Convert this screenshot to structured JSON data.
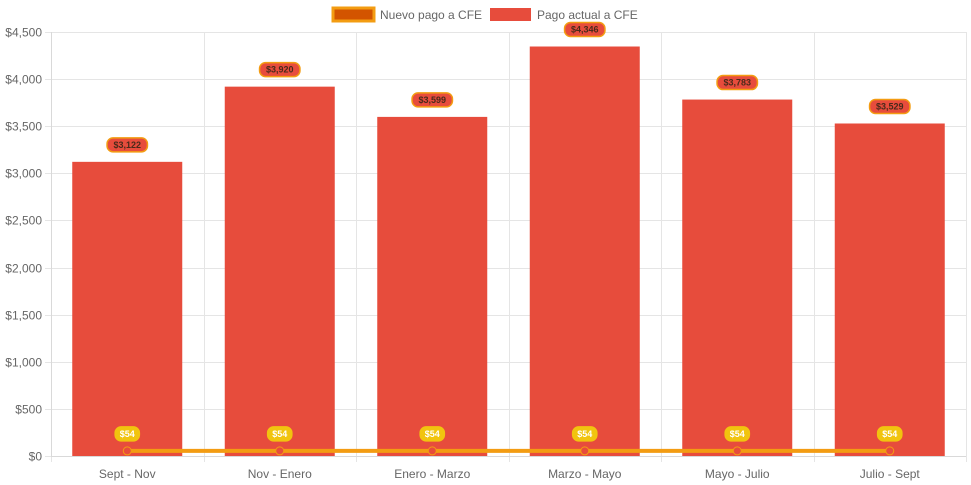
{
  "chart_data": {
    "type": "bar",
    "categories": [
      "Sept - Nov",
      "Nov - Enero",
      "Enero - Marzo",
      "Marzo - Mayo",
      "Mayo - Julio",
      "Julio - Sept"
    ],
    "series": [
      {
        "name": "Nuevo pago a CFE",
        "render": "line",
        "values": [
          54,
          54,
          54,
          54,
          54,
          54
        ],
        "labels": [
          "$54",
          "$54",
          "$54",
          "$54",
          "$54",
          "$54"
        ],
        "color": "#F39C12",
        "fill": "#D35400"
      },
      {
        "name": "Pago actual a CFE",
        "render": "bar",
        "values": [
          3122,
          3920,
          3599,
          4346,
          3783,
          3529
        ],
        "labels": [
          "$3,122",
          "$3,920",
          "$3,599",
          "$4,346",
          "$3,783",
          "$3,529"
        ],
        "color": "#E74C3C"
      }
    ],
    "ylim": [
      0,
      4500
    ],
    "yticks": [
      0,
      500,
      1000,
      1500,
      2000,
      2500,
      3000,
      3500,
      4000,
      4500
    ],
    "ytick_labels": [
      "$0",
      "$500",
      "$1,000",
      "$1,500",
      "$2,000",
      "$2,500",
      "$3,000",
      "$3,500",
      "$4,000",
      "$4,500"
    ],
    "grid": true,
    "legend": "top-center",
    "title": "",
    "xlabel": "",
    "ylabel": ""
  }
}
